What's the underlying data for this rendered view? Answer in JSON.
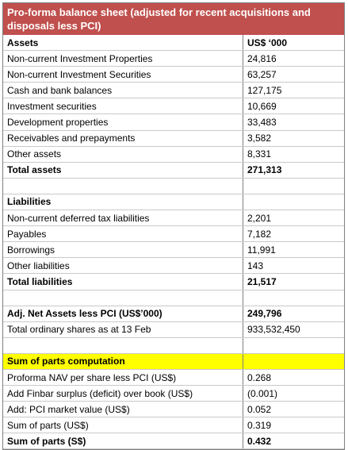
{
  "title": "Pro-forma balance sheet (adjusted for recent acquisitions and disposals less PCI)",
  "rows": [
    {
      "label": "Assets",
      "value": "US$ ‘000",
      "style": "bold"
    },
    {
      "label": "Non-current Investment Properties",
      "value": "24,816",
      "style": ""
    },
    {
      "label": "Non-current Investment Securities",
      "value": "63,257",
      "style": ""
    },
    {
      "label": "Cash and bank balances",
      "value": "127,175",
      "style": ""
    },
    {
      "label": "Investment securities",
      "value": "10,669",
      "style": ""
    },
    {
      "label": "Development properties",
      "value": "33,483",
      "style": ""
    },
    {
      "label": "Receivables and prepayments",
      "value": "3,582",
      "style": ""
    },
    {
      "label": "Other assets",
      "value": "8,331",
      "style": ""
    },
    {
      "label": "Total assets",
      "value": "271,313",
      "style": "bold"
    },
    {
      "label": "",
      "value": "",
      "style": ""
    },
    {
      "label": "Liabilities",
      "value": "",
      "style": "bold"
    },
    {
      "label": "Non-current deferred tax liabilities",
      "value": "2,201",
      "style": ""
    },
    {
      "label": "Payables",
      "value": "7,182",
      "style": ""
    },
    {
      "label": "Borrowings",
      "value": "11,991",
      "style": ""
    },
    {
      "label": "Other liabilities",
      "value": "143",
      "style": ""
    },
    {
      "label": "Total liabilities",
      "value": "21,517",
      "style": "bold"
    },
    {
      "label": "",
      "value": "",
      "style": ""
    },
    {
      "label": "Adj. Net Assets less PCI (US$’000)",
      "value": "249,796",
      "style": "bold"
    },
    {
      "label": "Total ordinary shares as at 13 Feb",
      "value": "933,532,450",
      "style": ""
    },
    {
      "label": "",
      "value": "",
      "style": ""
    },
    {
      "label": "Sum of parts computation",
      "value": "",
      "style": "yellow"
    },
    {
      "label": "Proforma NAV per share less PCI (US$)",
      "value": "0.268",
      "style": ""
    },
    {
      "label": "Add Finbar surplus (deficit) over book (US$)",
      "value": "(0.001)",
      "style": ""
    },
    {
      "label": "Add: PCI market value (US$)",
      "value": "0.052",
      "style": ""
    },
    {
      "label": "Sum of parts (US$)",
      "value": "0.319",
      "style": ""
    },
    {
      "label": "Sum of parts (S$)",
      "value": "0.432",
      "style": "bold"
    }
  ]
}
